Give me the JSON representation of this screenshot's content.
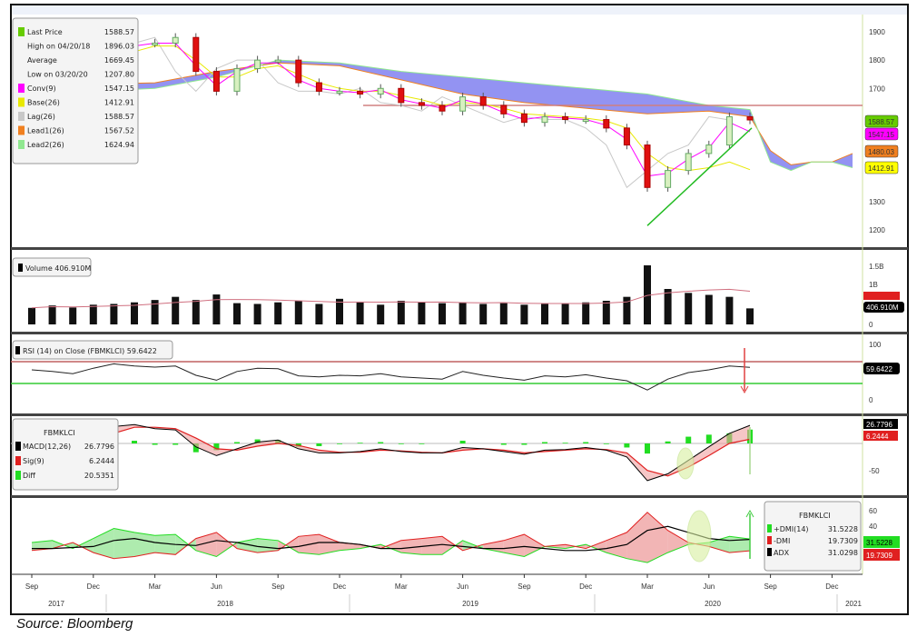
{
  "source": "Source: Bloomberg",
  "colors": {
    "conv": "#ff00ff",
    "base": "#e8e800",
    "lag": "#c8c8c8",
    "lead1": "#f08020",
    "lead2": "#90e890",
    "cloud": "#8080f0",
    "last": "#66cc00",
    "resistance": "#d08080",
    "rsi_upper": "#c06060",
    "rsi_lower": "#33cc33",
    "macd": "#000000",
    "sig": "#e02020",
    "diff": "#22dd22",
    "dmi_plus": "#22dd22",
    "dmi_minus": "#e02020",
    "adx": "#000000"
  },
  "chart_data": [
    {
      "type": "candlestick",
      "panel": "price",
      "legend": [
        {
          "label": "Last Price",
          "value": "1588.57",
          "color": "#66cc00"
        },
        {
          "label": "High on 04/20/18",
          "value": "1896.03"
        },
        {
          "label": "Average",
          "value": "1669.45"
        },
        {
          "label": "Low on 03/20/20",
          "value": "1207.80"
        },
        {
          "label": "Conv(9)",
          "value": "1547.15",
          "color": "#ff00ff"
        },
        {
          "label": "Base(26)",
          "value": "1412.91",
          "color": "#e8e800"
        },
        {
          "label": "Lag(26)",
          "value": "1588.57",
          "color": "#c8c8c8"
        },
        {
          "label": "Lead1(26)",
          "value": "1567.52",
          "color": "#f08020"
        },
        {
          "label": "Lead2(26)",
          "value": "1624.94",
          "color": "#90e890"
        }
      ],
      "yticks": [
        "1900",
        "1800",
        "1700",
        "1300",
        "1200"
      ],
      "ylim": [
        1150,
        1960
      ],
      "price_tags": [
        {
          "text": "1588.57",
          "color": "#66cc00"
        },
        {
          "text": "1547.15",
          "color": "#ff00ff"
        },
        {
          "text": "1480.03",
          "color": "#f08020"
        },
        {
          "text": "1412.91",
          "color": "#ffff00"
        }
      ],
      "dates": [
        "2017-09",
        "2017-10",
        "2017-11",
        "2017-12",
        "2018-01",
        "2018-02",
        "2018-03",
        "2018-04",
        "2018-05",
        "2018-06",
        "2018-07",
        "2018-08",
        "2018-09",
        "2018-10",
        "2018-11",
        "2018-12",
        "2019-01",
        "2019-02",
        "2019-03",
        "2019-04",
        "2019-05",
        "2019-06",
        "2019-07",
        "2019-08",
        "2019-09",
        "2019-10",
        "2019-11",
        "2019-12",
        "2020-01",
        "2020-02",
        "2020-03",
        "2020-04",
        "2020-05",
        "2020-06",
        "2020-07",
        "2020-08"
      ],
      "close": [
        1760,
        1750,
        1720,
        1790,
        1860,
        1860,
        1860,
        1880,
        1760,
        1690,
        1770,
        1800,
        1800,
        1720,
        1690,
        1690,
        1680,
        1700,
        1650,
        1640,
        1620,
        1670,
        1640,
        1610,
        1580,
        1600,
        1590,
        1590,
        1560,
        1500,
        1350,
        1410,
        1470,
        1500,
        1600,
        1588.57
      ],
      "conv": [
        1750,
        1750,
        1730,
        1770,
        1840,
        1850,
        1860,
        1860,
        1780,
        1710,
        1760,
        1790,
        1790,
        1730,
        1700,
        1690,
        1685,
        1695,
        1660,
        1645,
        1630,
        1660,
        1645,
        1615,
        1590,
        1600,
        1595,
        1590,
        1570,
        1520,
        1390,
        1400,
        1450,
        1490,
        1580,
        1547.15
      ],
      "base": [
        1740,
        1745,
        1740,
        1760,
        1800,
        1830,
        1850,
        1850,
        1800,
        1740,
        1740,
        1770,
        1780,
        1750,
        1720,
        1700,
        1690,
        1690,
        1675,
        1660,
        1640,
        1650,
        1645,
        1630,
        1610,
        1605,
        1600,
        1595,
        1585,
        1560,
        1470,
        1420,
        1410,
        1420,
        1440,
        1412.91
      ],
      "cloud_dates": [
        "2017-09",
        "2017-12",
        "2018-03",
        "2018-06",
        "2018-09",
        "2018-12",
        "2019-03",
        "2019-06",
        "2019-09",
        "2019-12",
        "2020-03",
        "2020-06",
        "2020-08",
        "2020-09",
        "2020-10",
        "2020-11",
        "2020-12",
        "2021-01"
      ],
      "lead1": [
        1720,
        1715,
        1720,
        1760,
        1790,
        1780,
        1730,
        1680,
        1650,
        1630,
        1610,
        1620,
        1600,
        1480,
        1430,
        1440,
        1440,
        1470
      ],
      "lead2": [
        1700,
        1690,
        1700,
        1740,
        1800,
        1790,
        1760,
        1740,
        1720,
        1700,
        1680,
        1640,
        1625,
        1440,
        1410,
        1440,
        1440,
        1420
      ],
      "resistance": 1640
    },
    {
      "type": "bar",
      "panel": "volume",
      "legend": "Volume 406.910M",
      "yticks": [
        "1.5B",
        "1B",
        "0"
      ],
      "last_tag": "406.910M",
      "values_millions": [
        420,
        480,
        430,
        500,
        520,
        560,
        620,
        700,
        620,
        760,
        540,
        520,
        560,
        600,
        520,
        650,
        560,
        500,
        600,
        560,
        540,
        560,
        520,
        540,
        500,
        520,
        540,
        560,
        600,
        700,
        1500,
        900,
        800,
        750,
        700,
        406.91
      ]
    },
    {
      "type": "line",
      "panel": "rsi",
      "legend": "RSI (14)  on Close (FBMKLCI) 59.6422",
      "yticks": [
        "100",
        "0"
      ],
      "ylim": [
        0,
        100
      ],
      "levels": [
        70,
        30
      ],
      "last_tag": "59.6422",
      "values": [
        55,
        52,
        48,
        58,
        66,
        62,
        60,
        62,
        45,
        36,
        52,
        58,
        57,
        44,
        42,
        45,
        44,
        48,
        42,
        40,
        38,
        52,
        45,
        40,
        36,
        44,
        42,
        46,
        40,
        35,
        18,
        38,
        50,
        55,
        62,
        59.64
      ]
    },
    {
      "type": "line",
      "panel": "macd",
      "legend_title": "FBMKLCI",
      "legend": [
        {
          "label": "MACD(12,26)",
          "value": "26.7796"
        },
        {
          "label": "Sig(9)",
          "value": "6.2444"
        },
        {
          "label": "Diff",
          "value": "20.5351"
        }
      ],
      "yticks": [
        "-50"
      ],
      "ylim": [
        -70,
        35
      ],
      "tags": [
        "26.7796",
        "6.2444"
      ],
      "macd": [
        5,
        0,
        -3,
        8,
        25,
        28,
        22,
        20,
        -5,
        -18,
        -8,
        2,
        5,
        -8,
        -14,
        -14,
        -12,
        -8,
        -12,
        -14,
        -14,
        -6,
        -8,
        -12,
        -16,
        -10,
        -9,
        -6,
        -10,
        -20,
        -55,
        -45,
        -25,
        -5,
        15,
        26.78
      ],
      "sig": [
        6,
        3,
        0,
        4,
        15,
        24,
        24,
        22,
        8,
        -8,
        -10,
        -4,
        0,
        -3,
        -10,
        -13,
        -13,
        -10,
        -11,
        -13,
        -14,
        -10,
        -8,
        -10,
        -14,
        -12,
        -10,
        -8,
        -9,
        -14,
        -40,
        -48,
        -35,
        -18,
        0,
        6.24
      ]
    },
    {
      "type": "line",
      "panel": "dmi",
      "legend_title": "FBMKLCI",
      "legend": [
        {
          "label": "+DMI(14)",
          "value": "31.5228"
        },
        {
          "label": "-DMI",
          "value": "19.7309"
        },
        {
          "label": "ADX",
          "value": "31.0298"
        }
      ],
      "yticks": [
        "60",
        "40"
      ],
      "ylim": [
        0,
        65
      ],
      "tags": [
        "31.5228",
        "19.7309"
      ],
      "plus": [
        28,
        30,
        22,
        32,
        42,
        38,
        35,
        36,
        20,
        14,
        28,
        32,
        30,
        18,
        16,
        20,
        22,
        26,
        18,
        16,
        16,
        30,
        22,
        18,
        14,
        24,
        22,
        26,
        18,
        12,
        8,
        18,
        26,
        28,
        34,
        31.52
      ],
      "minus": [
        20,
        22,
        28,
        18,
        12,
        14,
        18,
        16,
        32,
        38,
        22,
        18,
        20,
        34,
        36,
        28,
        26,
        22,
        30,
        32,
        34,
        20,
        26,
        30,
        36,
        24,
        26,
        22,
        30,
        38,
        58,
        40,
        28,
        24,
        18,
        19.73
      ],
      "adx": [
        22,
        22,
        23,
        24,
        30,
        32,
        28,
        26,
        25,
        30,
        28,
        24,
        22,
        24,
        28,
        28,
        26,
        22,
        22,
        24,
        26,
        24,
        22,
        22,
        24,
        22,
        20,
        20,
        22,
        26,
        40,
        44,
        38,
        32,
        30,
        31.03
      ]
    },
    {
      "type": "axis",
      "months": [
        "Sep",
        "Dec",
        "Mar",
        "Jun",
        "Sep",
        "Dec",
        "Mar",
        "Jun",
        "Sep",
        "Dec",
        "Mar",
        "Jun",
        "Sep",
        "Dec"
      ],
      "years": [
        "2017",
        "2018",
        "2019",
        "2020",
        "2021"
      ]
    }
  ]
}
